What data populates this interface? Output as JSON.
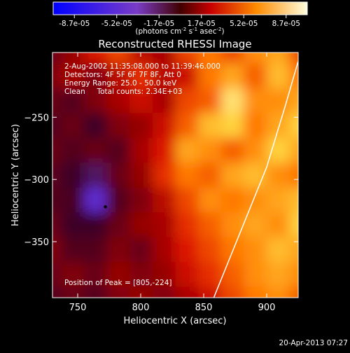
{
  "chart_data": {
    "type": "heatmap",
    "title": "Reconstructed RHESSI Image",
    "xlabel": "Heliocentric X (arcsec)",
    "ylabel": "Heliocentric Y (arcsec)",
    "xlim": [
      730,
      925
    ],
    "ylim": [
      -395,
      -198
    ],
    "x_ticks": [
      750,
      800,
      850,
      900
    ],
    "y_ticks": [
      -250,
      -300,
      -350
    ],
    "colorbar": {
      "ticks": [
        "-8.7e-05",
        "-5.2e-05",
        "-1.7e-05",
        "1.7e-05",
        "5.2e-05",
        "8.7e-05"
      ],
      "unit_prefix": "(photons cm",
      "unit_exp1": "-2",
      "unit_mid": " s",
      "unit_exp2": "-1",
      "unit_suffix": " asec",
      "unit_exp3": "-2",
      "unit_close": ")",
      "min": -8.7e-05,
      "max": 8.7e-05
    },
    "info_lines": [
      "2-Aug-2002 11:35:08.000 to 11:39:46.000",
      "Detectors: 4F 5F 6F 7F 8F, Att 0",
      "Energy Range: 25.0 - 50.0 keV",
      "Clean     Total counts: 2.34E+03"
    ],
    "peak_label": "Position of Peak = [805,-224]",
    "limb_curve": [
      [
        858,
        -395
      ],
      [
        880,
        -340
      ],
      [
        900,
        -290
      ],
      [
        915,
        -240
      ],
      [
        925,
        -205
      ]
    ],
    "minimum_marker": [
      772,
      -322
    ],
    "field": {
      "rows": [
        [
          0.15,
          0.25,
          0.45,
          0.55,
          0.35,
          0.3,
          0.55,
          0.65,
          0.55,
          0.7,
          0.75,
          0.55
        ],
        [
          0.2,
          0.3,
          0.2,
          0.35,
          0.5,
          0.35,
          0.4,
          0.65,
          0.75,
          0.6,
          0.8,
          0.65
        ],
        [
          0.15,
          0.1,
          0.2,
          0.3,
          0.4,
          0.3,
          0.55,
          0.6,
          0.9,
          0.7,
          0.7,
          0.75
        ],
        [
          0.1,
          0.15,
          0.05,
          0.2,
          0.25,
          0.4,
          0.6,
          0.8,
          0.85,
          0.65,
          0.75,
          0.85
        ],
        [
          0.15,
          0.1,
          0.15,
          0.1,
          0.3,
          0.45,
          0.75,
          0.7,
          0.6,
          0.7,
          0.85,
          0.75
        ],
        [
          0.12,
          0.05,
          -0.05,
          0.15,
          0.25,
          0.5,
          0.65,
          0.6,
          0.75,
          0.8,
          0.7,
          0.65
        ],
        [
          0.1,
          0.08,
          -0.35,
          0.1,
          0.2,
          0.35,
          0.55,
          0.7,
          0.65,
          0.7,
          0.75,
          0.8
        ],
        [
          0.15,
          0.05,
          0.05,
          0.15,
          0.25,
          0.3,
          0.5,
          0.6,
          0.7,
          0.75,
          0.7,
          0.85
        ],
        [
          0.2,
          0.1,
          0.1,
          0.2,
          0.15,
          0.3,
          0.45,
          0.55,
          0.65,
          0.7,
          0.8,
          0.75
        ],
        [
          0.15,
          0.2,
          0.15,
          0.25,
          0.2,
          0.25,
          0.4,
          0.5,
          0.6,
          0.7,
          0.75,
          0.7
        ],
        [
          0.1,
          0.15,
          0.1,
          0.2,
          0.25,
          0.2,
          0.3,
          0.4,
          0.55,
          0.65,
          0.7,
          0.6
        ]
      ]
    }
  },
  "footer_timestamp": "20-Apr-2013 07:27"
}
